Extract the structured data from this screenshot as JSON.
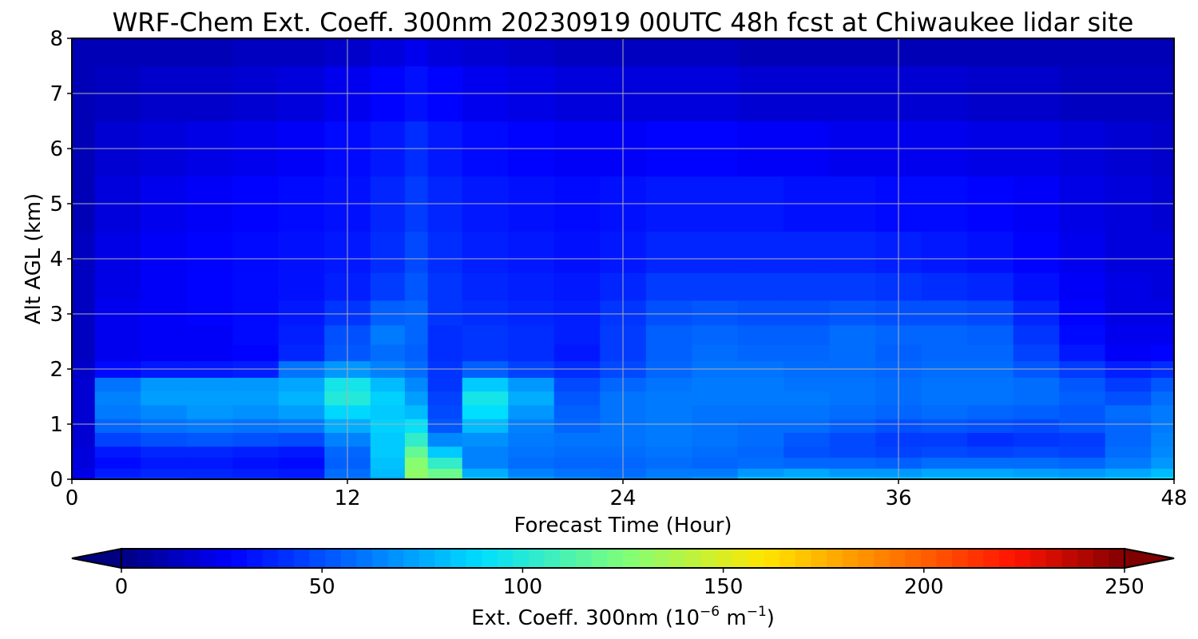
{
  "chart_data": {
    "type": "heatmap",
    "title": "WRF-Chem Ext. Coeff. 300nm  20230919 00UTC 48h fcst at Chiwaukee lidar site",
    "xlabel": "Forecast Time (Hour)",
    "ylabel": "Alt AGL (km)",
    "xlim": [
      0,
      48
    ],
    "ylim": [
      0,
      8
    ],
    "x_ticks": [
      0,
      12,
      24,
      36,
      48
    ],
    "y_ticks": [
      0,
      1,
      2,
      3,
      4,
      5,
      6,
      7,
      8
    ],
    "grid": true,
    "colormap": "jet",
    "colorbar": {
      "label_main": "Ext. Coeff. 300nm  (10",
      "label_exp1": "−6",
      "label_mid": " m",
      "label_exp2": "−1",
      "label_end": ")",
      "range": [
        0,
        250
      ],
      "extend": "both",
      "ticks": [
        0,
        50,
        100,
        150,
        200,
        250
      ]
    },
    "x": [
      0,
      2,
      4,
      6,
      8,
      10,
      12,
      14,
      15,
      16,
      18,
      20,
      22,
      24,
      26,
      28,
      30,
      32,
      34,
      36,
      38,
      40,
      42,
      44,
      46,
      48
    ],
    "y": [
      0,
      0.1,
      0.3,
      0.5,
      0.7,
      1.0,
      1.2,
      1.5,
      1.7,
      2.0,
      2.3,
      2.6,
      3.0,
      3.5,
      4.0,
      5.0,
      6.0,
      7.0,
      8.0
    ],
    "z": [
      [
        22,
        40,
        42,
        40,
        40,
        38,
        60,
        75,
        128,
        122,
        84,
        72,
        66,
        62,
        66,
        70,
        84,
        84,
        84,
        82,
        86,
        86,
        84,
        82,
        86,
        90
      ],
      [
        22,
        35,
        38,
        38,
        36,
        34,
        58,
        80,
        130,
        120,
        76,
        64,
        60,
        58,
        62,
        62,
        70,
        74,
        70,
        70,
        74,
        74,
        72,
        70,
        74,
        80
      ],
      [
        20,
        30,
        34,
        34,
        32,
        30,
        54,
        82,
        128,
        104,
        64,
        58,
        56,
        56,
        58,
        56,
        58,
        56,
        56,
        54,
        58,
        58,
        58,
        56,
        62,
        70
      ],
      [
        20,
        34,
        38,
        38,
        36,
        34,
        56,
        84,
        118,
        84,
        64,
        60,
        58,
        58,
        60,
        58,
        56,
        50,
        48,
        46,
        48,
        46,
        48,
        46,
        58,
        66
      ],
      [
        18,
        46,
        50,
        52,
        50,
        48,
        64,
        84,
        104,
        66,
        68,
        62,
        60,
        60,
        62,
        60,
        58,
        52,
        48,
        44,
        44,
        40,
        42,
        44,
        56,
        64
      ],
      [
        18,
        56,
        60,
        62,
        60,
        62,
        76,
        86,
        92,
        52,
        80,
        64,
        56,
        60,
        62,
        60,
        58,
        58,
        54,
        50,
        52,
        50,
        48,
        52,
        56,
        62
      ],
      [
        18,
        62,
        66,
        70,
        68,
        72,
        88,
        84,
        80,
        48,
        90,
        70,
        54,
        60,
        62,
        60,
        60,
        60,
        58,
        56,
        58,
        56,
        54,
        52,
        58,
        62
      ],
      [
        18,
        64,
        72,
        72,
        72,
        78,
        100,
        86,
        72,
        46,
        96,
        76,
        52,
        60,
        62,
        62,
        62,
        62,
        60,
        58,
        60,
        60,
        58,
        54,
        50,
        58
      ],
      [
        18,
        60,
        70,
        70,
        70,
        74,
        96,
        80,
        66,
        42,
        84,
        70,
        48,
        56,
        60,
        62,
        62,
        60,
        60,
        58,
        60,
        60,
        58,
        52,
        44,
        52
      ],
      [
        16,
        30,
        34,
        34,
        36,
        60,
        70,
        64,
        58,
        42,
        54,
        46,
        40,
        48,
        56,
        60,
        60,
        58,
        58,
        56,
        58,
        58,
        52,
        44,
        36,
        40
      ],
      [
        14,
        24,
        26,
        26,
        28,
        38,
        52,
        58,
        54,
        40,
        42,
        40,
        34,
        44,
        54,
        58,
        56,
        56,
        58,
        54,
        56,
        56,
        46,
        34,
        26,
        28
      ],
      [
        14,
        24,
        26,
        26,
        30,
        36,
        50,
        62,
        56,
        40,
        42,
        40,
        36,
        44,
        54,
        56,
        54,
        54,
        58,
        56,
        56,
        54,
        42,
        30,
        24,
        24
      ],
      [
        14,
        24,
        26,
        28,
        30,
        34,
        42,
        54,
        56,
        42,
        40,
        38,
        36,
        42,
        50,
        52,
        50,
        50,
        52,
        50,
        50,
        48,
        38,
        28,
        22,
        22
      ],
      [
        14,
        22,
        26,
        28,
        30,
        32,
        36,
        44,
        52,
        42,
        38,
        36,
        34,
        38,
        44,
        44,
        44,
        44,
        44,
        42,
        40,
        38,
        32,
        26,
        22,
        20
      ],
      [
        14,
        22,
        26,
        28,
        30,
        32,
        34,
        40,
        48,
        40,
        36,
        34,
        32,
        34,
        38,
        38,
        38,
        38,
        38,
        36,
        34,
        32,
        28,
        24,
        20,
        20
      ],
      [
        12,
        20,
        24,
        26,
        28,
        30,
        32,
        38,
        44,
        38,
        34,
        32,
        30,
        32,
        34,
        34,
        34,
        32,
        32,
        30,
        30,
        28,
        26,
        22,
        20,
        18
      ],
      [
        12,
        18,
        20,
        22,
        24,
        26,
        30,
        34,
        40,
        34,
        30,
        28,
        26,
        26,
        28,
        28,
        26,
        26,
        24,
        24,
        24,
        22,
        22,
        20,
        18,
        16
      ],
      [
        12,
        14,
        16,
        16,
        18,
        20,
        24,
        28,
        32,
        28,
        24,
        22,
        20,
        20,
        20,
        20,
        18,
        18,
        18,
        18,
        18,
        16,
        16,
        14,
        14,
        14
      ],
      [
        12,
        12,
        12,
        12,
        14,
        14,
        16,
        20,
        24,
        20,
        18,
        16,
        14,
        14,
        14,
        14,
        12,
        12,
        12,
        12,
        12,
        12,
        12,
        12,
        12,
        12
      ]
    ]
  }
}
